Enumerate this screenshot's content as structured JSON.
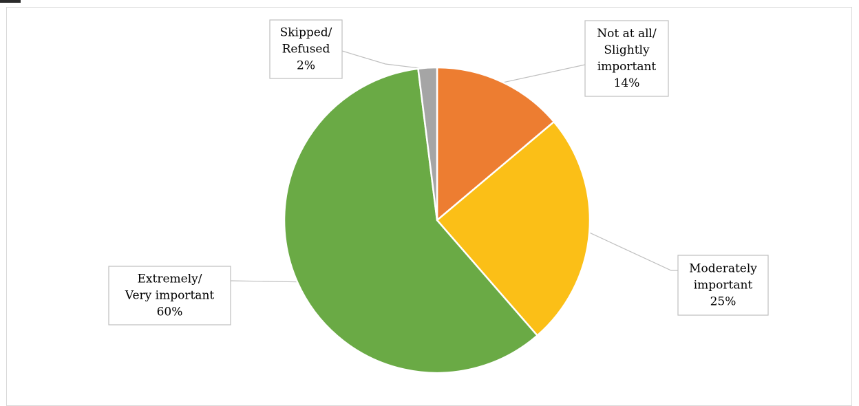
{
  "chart_data": {
    "type": "pie",
    "start_angle_deg": 0,
    "direction": "clockwise",
    "slices": [
      {
        "lines": [
          "Not at all/",
          "Slightly",
          "important"
        ],
        "value_label": "14%",
        "value": 14,
        "color": "#ED7D31"
      },
      {
        "lines": [
          "Moderately",
          "important"
        ],
        "value_label": "25%",
        "value": 25,
        "color": "#FBBF17"
      },
      {
        "lines": [
          "Extremely/",
          "Very important"
        ],
        "value_label": "60%",
        "value": 60,
        "color": "#6AAA45"
      },
      {
        "lines": [
          "Skipped/",
          "Refused"
        ],
        "value_label": "2%",
        "value": 2,
        "color": "#A5A5A5"
      }
    ]
  }
}
